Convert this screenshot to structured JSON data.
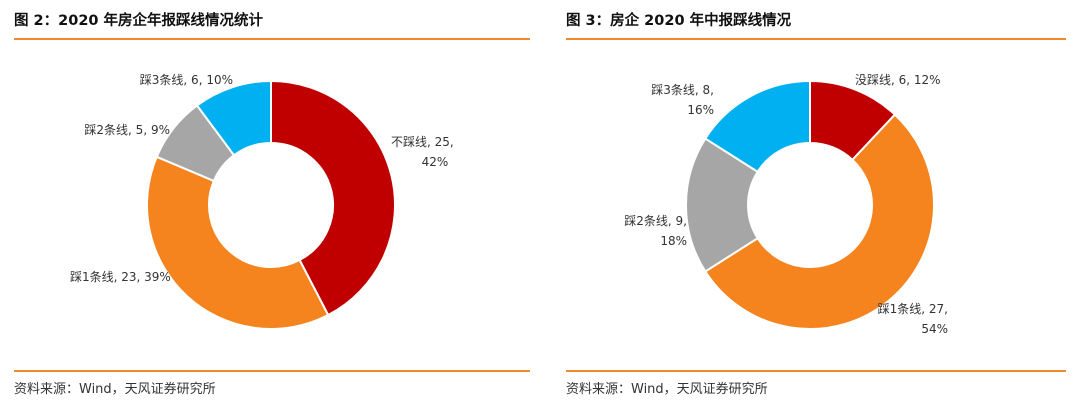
{
  "figures": [
    {
      "title": "图 2：2020 年房企年报踩线情况统计",
      "source": "资料来源：Wind，天风证券研究所"
    },
    {
      "title": "图 3：房企 2020 年中报踩线情况",
      "source": "资料来源：Wind，天风证券研究所"
    }
  ],
  "chart_data": [
    {
      "type": "pie",
      "title": "图 2：2020 年房企年报踩线情况统计",
      "donut": true,
      "slices": [
        {
          "label": "不踩线",
          "value": 25,
          "percent": "42%",
          "color": "#c00000",
          "text_lines": [
            "不踩线, 25,",
            "42%"
          ]
        },
        {
          "label": "踩1条线",
          "value": 23,
          "percent": "39%",
          "color": "#f5841f",
          "text_lines": [
            "踩1条线, 23, 39%"
          ]
        },
        {
          "label": "踩2条线",
          "value": 5,
          "percent": "9%",
          "color": "#a6a6a6",
          "text_lines": [
            "踩2条线, 5, 9%"
          ]
        },
        {
          "label": "踩3条线",
          "value": 6,
          "percent": "10%",
          "color": "#00b0f0",
          "text_lines": [
            "踩3条线, 6, 10%"
          ]
        }
      ]
    },
    {
      "type": "pie",
      "title": "图 3：房企 2020 年中报踩线情况",
      "donut": true,
      "slices": [
        {
          "label": "没踩线",
          "value": 6,
          "percent": "12%",
          "color": "#c00000",
          "text_lines": [
            "没踩线, 6, 12%"
          ]
        },
        {
          "label": "踩1条线",
          "value": 27,
          "percent": "54%",
          "color": "#f5841f",
          "text_lines": [
            "踩1条线, 27,",
            "54%"
          ]
        },
        {
          "label": "踩2条线",
          "value": 9,
          "percent": "18%",
          "color": "#a6a6a6",
          "text_lines": [
            "踩2条线, 9,",
            "18%"
          ]
        },
        {
          "label": "踩3条线",
          "value": 8,
          "percent": "16%",
          "color": "#00b0f0",
          "text_lines": [
            "踩3条线, 8,",
            "16%"
          ]
        }
      ]
    }
  ]
}
